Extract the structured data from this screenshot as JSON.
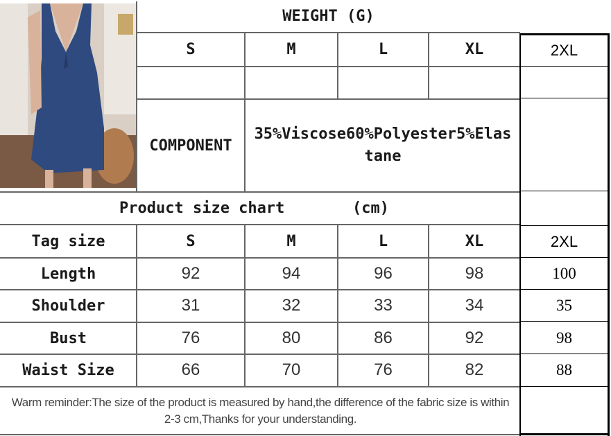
{
  "weight_header": "WEIGHT (G)",
  "sizes": [
    "S",
    "M",
    "L",
    "XL",
    "2XL"
  ],
  "weight_values": [
    "",
    "",
    "",
    "",
    ""
  ],
  "component_label": "COMPONENT",
  "component_value": "35%Viscose60%Polyester5%Elastane",
  "chart_title": "Product size chart",
  "chart_unit": "(cm)",
  "tag_size_label": "Tag size",
  "rows": [
    {
      "label": "Length",
      "values": [
        "92",
        "94",
        "96",
        "98",
        "100"
      ]
    },
    {
      "label": "Shoulder",
      "values": [
        "31",
        "32",
        "33",
        "34",
        "35"
      ]
    },
    {
      "label": "Bust",
      "values": [
        "76",
        "80",
        "86",
        "92",
        "98"
      ]
    },
    {
      "label": "Waist Size",
      "values": [
        "66",
        "70",
        "76",
        "82",
        "88"
      ]
    }
  ],
  "reminder": "Warm reminder:The size of the product is measured by hand,the difference of the fabric size is within 2-3 cm,Thanks for your understanding.",
  "colors": {
    "dress": "#2f4a7e",
    "grid": "#666666",
    "right_grid": "#000000"
  }
}
